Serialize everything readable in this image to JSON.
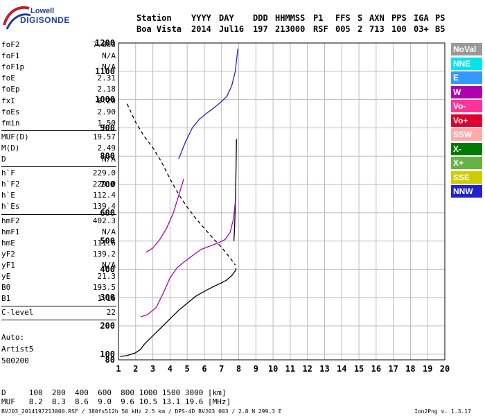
{
  "logo": {
    "line1": "Lowell",
    "line2": "DIGISONDE"
  },
  "header": {
    "row1": [
      "Station",
      "YYYY",
      "DAY",
      "DDD",
      "HHMMSS",
      "P1",
      "FFS",
      "S",
      "AXN",
      "PPS",
      "IGA",
      "PS"
    ],
    "row2": [
      "Boa Vista",
      "2014",
      "Jul16",
      "197",
      "213000",
      "RSF",
      "005",
      "2",
      "713",
      "100",
      "03+",
      "B5"
    ]
  },
  "params": {
    "group1": [
      {
        "label": "foF2",
        "value": "7.853"
      },
      {
        "label": "foF1",
        "value": "N/A"
      },
      {
        "label": "foF1p",
        "value": "N/A"
      },
      {
        "label": "foE",
        "value": "2.31"
      },
      {
        "label": "foEp",
        "value": "2.18"
      },
      {
        "label": "fxI",
        "value": "8.20"
      },
      {
        "label": "foEs",
        "value": "2.90"
      },
      {
        "label": "fmin",
        "value": "1.50"
      }
    ],
    "group2": [
      {
        "label": "MUF(D)",
        "value": "19.57"
      },
      {
        "label": "M(D)",
        "value": "2.49"
      },
      {
        "label": "D",
        "value": "N/A"
      }
    ],
    "group3": [
      {
        "label": "h`F",
        "value": "229.0"
      },
      {
        "label": "h`F2",
        "value": "229.0"
      },
      {
        "label": "h`E",
        "value": "112.4"
      },
      {
        "label": "h`Es",
        "value": "139.4"
      }
    ],
    "group4": [
      {
        "label": "hmF2",
        "value": "402.3"
      },
      {
        "label": "hmF1",
        "value": "N/A"
      },
      {
        "label": "hmE",
        "value": "111.6"
      },
      {
        "label": "yF2",
        "value": "139.2"
      },
      {
        "label": "yF1",
        "value": "N/A"
      },
      {
        "label": "yE",
        "value": "21.3"
      },
      {
        "label": "B0",
        "value": "193.5"
      },
      {
        "label": "B1",
        "value": "1.16"
      }
    ],
    "group5": [
      {
        "label": "C-level",
        "value": "22"
      }
    ]
  },
  "auto": [
    "Auto:",
    "Artist5",
    "500200"
  ],
  "legend": [
    {
      "label": "NoVal",
      "color": "#999999"
    },
    {
      "label": "NNE",
      "color": "#00e5ee"
    },
    {
      "label": "E",
      "color": "#3399ff"
    },
    {
      "label": "W",
      "color": "#b000b0"
    },
    {
      "label": "Vo-",
      "color": "#ff3399"
    },
    {
      "label": "Vo+",
      "color": "#e00030"
    },
    {
      "label": "SSW",
      "color": "#ffaaaa"
    },
    {
      "label": "X-",
      "color": "#007a00"
    },
    {
      "label": "X+",
      "color": "#66b244"
    },
    {
      "label": "SSE",
      "color": "#cccc00"
    },
    {
      "label": "NNW",
      "color": "#2222cc"
    }
  ],
  "dtable": {
    "row_d": "D     100  200  400  600  800 1000 1500 3000 [km]",
    "row_muf": "MUF   8.2  8.3  8.6  9.0  9.6 10.5 13.1 19.6 [MHz]"
  },
  "footer": {
    "left": "BVJ03_2014197213000.RSF / 380fx512h 50 kHz 2.5 km / DPS-4D BVJ03 003 / 2.8 N 299.3 E",
    "right": "Ion2Png v. 1.3.17"
  },
  "chart_data": {
    "type": "scatter",
    "xlim": [
      1,
      20
    ],
    "ylim": [
      80,
      1200
    ],
    "x_ticks": [
      1,
      2,
      3,
      4,
      5,
      6,
      7,
      8,
      9,
      10,
      11,
      12,
      13,
      14,
      15,
      16,
      17,
      18,
      19,
      20
    ],
    "y_ticks": [
      80,
      100,
      200,
      300,
      400,
      500,
      600,
      700,
      800,
      900,
      1000,
      1100,
      1200
    ],
    "grid": true,
    "series": [
      {
        "color": "#000000",
        "style": "solid",
        "x": [
          1.1,
          1.5,
          2.0,
          2.3,
          2.5,
          3.0,
          3.5,
          4.0,
          4.5,
          5.0,
          5.5,
          6.0,
          6.5,
          7.0,
          7.3,
          7.6,
          7.8,
          7.85
        ],
        "y": [
          92,
          95,
          105,
          118,
          135,
          165,
          195,
          225,
          255,
          280,
          305,
          322,
          338,
          352,
          362,
          378,
          395,
          405
        ]
      },
      {
        "color": "#000000",
        "style": "solid",
        "x": [
          7.72,
          7.76,
          7.8,
          7.83,
          7.85,
          7.86,
          7.87
        ],
        "y": [
          500,
          550,
          620,
          700,
          780,
          830,
          860
        ]
      },
      {
        "color": "#000000",
        "style": "dashed",
        "x": [
          1.5,
          2.0,
          2.5,
          3.0,
          3.5,
          4.0,
          4.5,
          5.0,
          5.5,
          6.0,
          6.5,
          7.0,
          7.5,
          7.8
        ],
        "y": [
          985,
          920,
          870,
          830,
          780,
          720,
          665,
          620,
          580,
          545,
          510,
          478,
          440,
          415
        ]
      },
      {
        "color": "#b000b0",
        "style": "solid",
        "x": [
          2.3,
          2.7,
          3.2,
          3.6,
          4.0,
          4.4,
          4.8,
          5.3,
          5.8,
          6.3,
          6.8,
          7.2,
          7.5,
          7.7,
          7.8
        ],
        "y": [
          232,
          240,
          265,
          315,
          370,
          405,
          425,
          448,
          470,
          482,
          493,
          505,
          530,
          580,
          640
        ]
      },
      {
        "color": "#b000b0",
        "style": "solid",
        "x": [
          2.6,
          3.0,
          3.4,
          3.8,
          4.2,
          4.5,
          4.8
        ],
        "y": [
          460,
          475,
          505,
          545,
          600,
          660,
          720
        ]
      },
      {
        "color": "#2222cc",
        "style": "solid",
        "x": [
          4.5,
          4.9,
          5.3,
          5.7,
          6.1,
          6.5,
          6.9,
          7.3,
          7.6,
          7.8,
          7.95
        ],
        "y": [
          790,
          850,
          900,
          930,
          950,
          968,
          988,
          1010,
          1050,
          1100,
          1180
        ]
      }
    ]
  }
}
